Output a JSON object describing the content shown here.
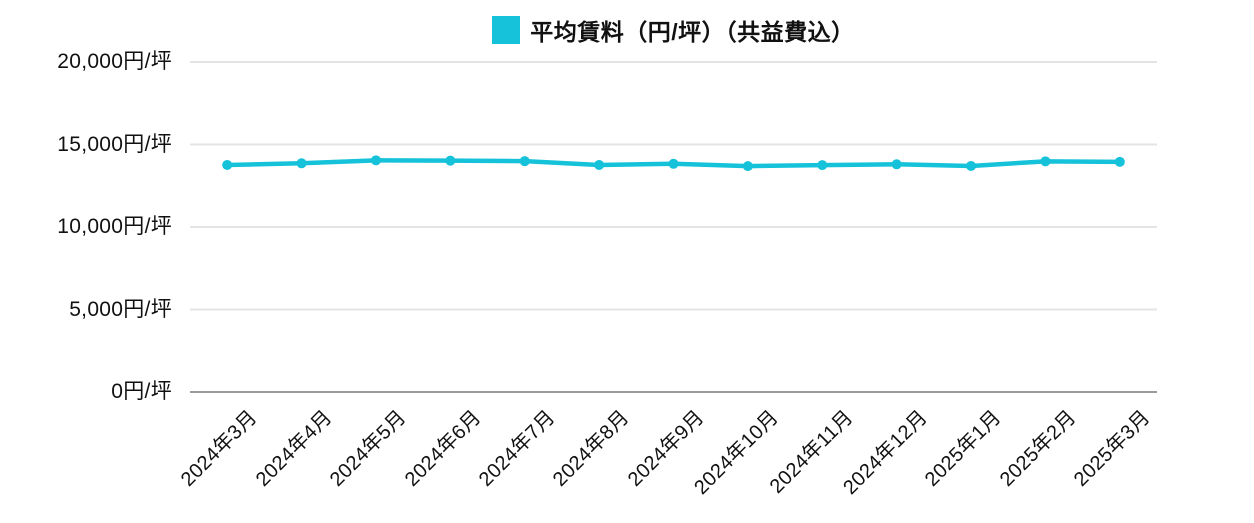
{
  "legend": {
    "label": "平均賃料（円/坪）（共益費込）",
    "color": "#15C2D9"
  },
  "chart_data": {
    "type": "line",
    "title": "",
    "x": [
      "2024年3月",
      "2024年4月",
      "2024年5月",
      "2024年6月",
      "2024年7月",
      "2024年8月",
      "2024年9月",
      "2024年10月",
      "2024年11月",
      "2024年12月",
      "2025年1月",
      "2025年2月",
      "2025年3月"
    ],
    "series": [
      {
        "name": "平均賃料（円/坪）（共益費込）",
        "color": "#15C2D9",
        "values": [
          13760,
          13860,
          14040,
          14020,
          13990,
          13760,
          13830,
          13690,
          13750,
          13800,
          13700,
          13980,
          13950
        ]
      }
    ],
    "ylim": [
      0,
      20000
    ],
    "yticks": {
      "values": [
        0,
        5000,
        10000,
        15000,
        20000
      ],
      "labels": [
        "0円/坪",
        "5,000円/坪",
        "10,000円/坪",
        "15,000円/坪",
        "20,000円/坪"
      ]
    },
    "grid": true,
    "legend_position": "top",
    "x_tick_rotation": -45
  },
  "colors": {
    "grid": "#e4e4e4",
    "axis": "#9b9b9b",
    "text": "#111111",
    "background": "#ffffff"
  }
}
